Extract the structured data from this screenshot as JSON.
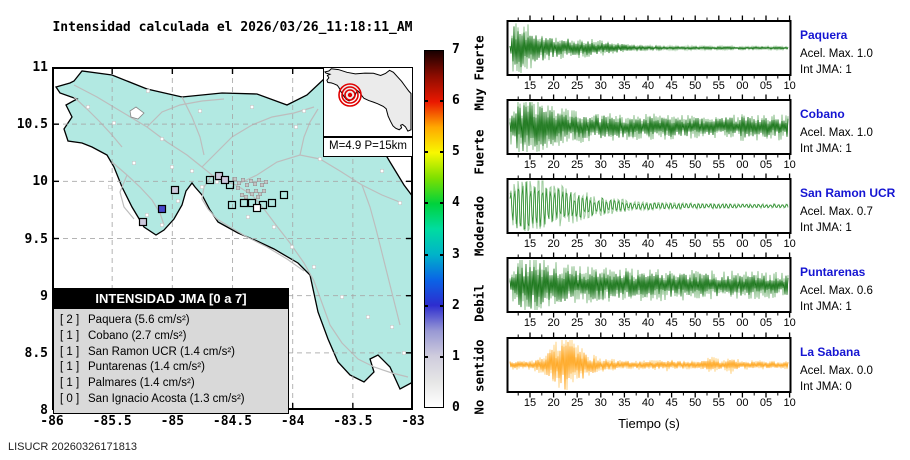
{
  "title": "Intensidad calculada el 2026/03/26_11:18:11_AM",
  "footer": "LISUCR 20260326171813",
  "chart_data": {
    "map": {
      "type": "map",
      "x_range": [
        -86,
        -83
      ],
      "y_range": [
        8,
        11
      ],
      "x_tick_labels": [
        "-86",
        "-85.5",
        "-85",
        "-84.5",
        "-84",
        "-83.5",
        "-83"
      ],
      "y_tick_labels": [
        "11",
        "10.5",
        "10",
        "9.5",
        "9",
        "8.5",
        "8"
      ],
      "land_color": "#b2e9e2",
      "road_color": "#bdbdbd",
      "event": {
        "magnitude_label": "M=4.9 P=15km",
        "epicenter_color": "#e00000"
      },
      "stations": [
        {
          "name": "Paquera",
          "int_jma": 2,
          "acel_cms2": 5.6,
          "x": 110,
          "y": 142,
          "color": "#4646cc"
        },
        {
          "name": "Cobano",
          "int_jma": 1,
          "acel_cms2": 2.7,
          "x": 91,
          "y": 155,
          "color": "#ccc9dc"
        },
        {
          "name": "San Ramon UCR",
          "int_jma": 1,
          "acel_cms2": 1.4,
          "x": 167,
          "y": 109,
          "color": "#ccc9dc"
        },
        {
          "name": "Puntarenas",
          "int_jma": 1,
          "acel_cms2": 1.4,
          "x": 123,
          "y": 123,
          "color": "#ccc9dc"
        },
        {
          "name": "Palmares",
          "int_jma": 1,
          "acel_cms2": 1.4,
          "x": 173,
          "y": 113,
          "color": "#ccc9dc"
        },
        {
          "name": "San Ignacio Acosta",
          "int_jma": 0,
          "acel_cms2": 1.3,
          "x": 205,
          "y": 141,
          "color": "#ffffff"
        }
      ],
      "legend": {
        "title": "INTENSIDAD JMA [0 a 7]",
        "rows": [
          {
            "bracket": "[ 2 ]",
            "text": "Paquera (5.6 cm/s²)"
          },
          {
            "bracket": "[ 1 ]",
            "text": "Cobano (2.7 cm/s²)"
          },
          {
            "bracket": "[ 1 ]",
            "text": "San Ramon UCR (1.4 cm/s²)"
          },
          {
            "bracket": "[ 1 ]",
            "text": "Puntarenas (1.4 cm/s²)"
          },
          {
            "bracket": "[ 1 ]",
            "text": "Palmares (1.4 cm/s²)"
          },
          {
            "bracket": "[ 0 ]",
            "text": "San Ignacio Acosta (1.3 cm/s²)"
          }
        ]
      }
    },
    "intensity_scale": {
      "type": "colorbar",
      "range": [
        0,
        7
      ],
      "tick_labels": [
        "0",
        "1",
        "2",
        "3",
        "4",
        "5",
        "6",
        "7"
      ],
      "category_labels": [
        {
          "text": "No sentido",
          "center": 0.6
        },
        {
          "text": "Debil",
          "center": 2.05
        },
        {
          "text": "Moderado",
          "center": 3.55
        },
        {
          "text": "Fuerte",
          "center": 5.0
        },
        {
          "text": "Muy Fuerte",
          "center": 6.55
        }
      ],
      "stops": [
        {
          "v": 0,
          "c": "#ffffff"
        },
        {
          "v": 0.5,
          "c": "#e6e6e6"
        },
        {
          "v": 1,
          "c": "#cfccdd"
        },
        {
          "v": 1.5,
          "c": "#9898d4"
        },
        {
          "v": 2,
          "c": "#2d2dcf"
        },
        {
          "v": 2.5,
          "c": "#0a64e6"
        },
        {
          "v": 3,
          "c": "#00b4c8"
        },
        {
          "v": 3.5,
          "c": "#00dca0"
        },
        {
          "v": 4,
          "c": "#00d23c"
        },
        {
          "v": 4.5,
          "c": "#7ee000"
        },
        {
          "v": 5,
          "c": "#f8f800"
        },
        {
          "v": 5.5,
          "c": "#ffa800"
        },
        {
          "v": 6,
          "c": "#ea1800"
        },
        {
          "v": 6.5,
          "c": "#8e0c00"
        },
        {
          "v": 7,
          "c": "#190000"
        }
      ]
    },
    "waveforms": {
      "type": "line",
      "xlabel": "Tiempo (s)",
      "x_tick_labels": [
        "15",
        "20",
        "25",
        "30",
        "35",
        "40",
        "45",
        "50",
        "55",
        "00",
        "05",
        "10"
      ],
      "panels": [
        {
          "name": "Paquera",
          "acel_label": "Acel. Max. 1.0",
          "int_label": "Int JMA: 1",
          "color": "#0e6e0e",
          "light": "#8abf8a",
          "seed": 11,
          "step": 1,
          "env": [
            [
              0,
              0.12
            ],
            [
              0.015,
              1
            ],
            [
              0.05,
              0.8
            ],
            [
              0.1,
              0.55
            ],
            [
              0.16,
              0.4
            ],
            [
              0.22,
              0.34
            ],
            [
              0.3,
              0.28
            ],
            [
              0.38,
              0.18
            ],
            [
              0.46,
              0.1
            ],
            [
              0.55,
              0.07
            ],
            [
              0.7,
              0.06
            ],
            [
              1,
              0.05
            ]
          ]
        },
        {
          "name": "Cobano",
          "acel_label": "Acel. Max. 1.0",
          "int_label": "Int JMA: 1",
          "color": "#0e6e0e",
          "light": "#8abf8a",
          "seed": 23,
          "step": 1,
          "env": [
            [
              0,
              0.5
            ],
            [
              0.03,
              0.95
            ],
            [
              0.07,
              1
            ],
            [
              0.12,
              0.8
            ],
            [
              0.18,
              0.6
            ],
            [
              0.25,
              0.5
            ],
            [
              0.35,
              0.44
            ],
            [
              0.5,
              0.42
            ],
            [
              0.62,
              0.38
            ],
            [
              0.75,
              0.36
            ],
            [
              0.85,
              0.44
            ],
            [
              0.93,
              0.42
            ],
            [
              1,
              0.4
            ]
          ]
        },
        {
          "name": "San Ramon UCR",
          "acel_label": "Acel. Max. 0.7",
          "int_label": "Int JMA: 1",
          "color": "#2f8f2f",
          "light": "#9ccb9c",
          "seed": 37,
          "step": 2,
          "env": [
            [
              0,
              0.45
            ],
            [
              0.02,
              0.9
            ],
            [
              0.06,
              1
            ],
            [
              0.12,
              0.8
            ],
            [
              0.2,
              0.6
            ],
            [
              0.28,
              0.42
            ],
            [
              0.36,
              0.28
            ],
            [
              0.45,
              0.15
            ],
            [
              0.6,
              0.1
            ],
            [
              0.8,
              0.08
            ],
            [
              1,
              0.07
            ]
          ]
        },
        {
          "name": "Puntarenas",
          "acel_label": "Acel. Max. 0.6",
          "int_label": "Int JMA: 1",
          "color": "#0e6e0e",
          "light": "#8abf8a",
          "seed": 51,
          "step": 1,
          "env": [
            [
              0,
              0.45
            ],
            [
              0.04,
              0.9
            ],
            [
              0.09,
              1
            ],
            [
              0.15,
              0.72
            ],
            [
              0.25,
              0.62
            ],
            [
              0.4,
              0.55
            ],
            [
              0.55,
              0.5
            ],
            [
              0.7,
              0.46
            ],
            [
              0.85,
              0.44
            ],
            [
              1,
              0.4
            ]
          ]
        },
        {
          "name": "La Sabana",
          "acel_label": "Acel. Max. 0.0",
          "int_label": "Int JMA: 0",
          "color": "#ffa41c",
          "light": "#ffd58a",
          "seed": 67,
          "step": 1,
          "env": [
            [
              0,
              0.14
            ],
            [
              0.08,
              0.16
            ],
            [
              0.12,
              0.3
            ],
            [
              0.16,
              0.7
            ],
            [
              0.2,
              1
            ],
            [
              0.24,
              0.7
            ],
            [
              0.28,
              0.4
            ],
            [
              0.33,
              0.22
            ],
            [
              0.4,
              0.16
            ],
            [
              0.5,
              0.14
            ],
            [
              0.56,
              0.2
            ],
            [
              0.6,
              0.14
            ],
            [
              0.68,
              0.13
            ],
            [
              0.73,
              0.28
            ],
            [
              0.76,
              0.14
            ],
            [
              0.8,
              0.3
            ],
            [
              0.83,
              0.14
            ],
            [
              0.9,
              0.14
            ],
            [
              1,
              0.13
            ]
          ]
        }
      ]
    }
  }
}
